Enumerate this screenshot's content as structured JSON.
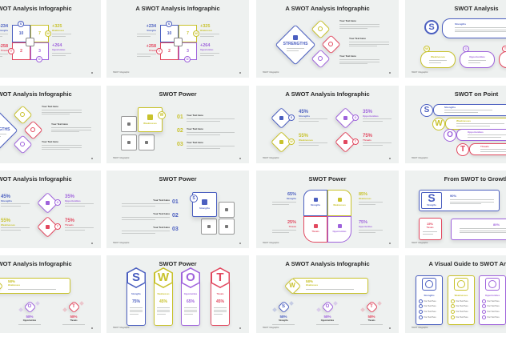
{
  "footer": "SWOT Infographic",
  "colors": {
    "S": "#4b5fc0",
    "W": "#c8c22c",
    "O": "#9f63dc",
    "T": "#e2485f",
    "slide_bg": "#eef1f0",
    "title": "#2a2a2a"
  },
  "slides": [
    {
      "title": "A SWOT Analysis Infographic",
      "stats": [
        {
          "value": "+234",
          "label": "Strengths"
        },
        {
          "value": "+258",
          "label": "Threats"
        },
        {
          "value": "+325",
          "label": "Weaknesses"
        },
        {
          "value": "+264",
          "label": "Opportunities"
        }
      ],
      "cells": [
        "10",
        "7",
        "2",
        "3"
      ],
      "letters": [
        "S",
        "W",
        "T",
        "O"
      ]
    },
    {
      "title": "A SWOT Analysis Infographic",
      "stats": [
        {
          "value": "+234",
          "label": "Strengths"
        },
        {
          "value": "+258",
          "label": "Threats"
        },
        {
          "value": "+325",
          "label": "Weaknesses"
        },
        {
          "value": "+264",
          "label": "Opportunities"
        }
      ],
      "cells": [
        "10",
        "7",
        "2",
        "3"
      ],
      "letters": [
        "S",
        "W",
        "T",
        "O"
      ]
    },
    {
      "title": "A SWOT Analysis Infographic",
      "main": "STRENGTHS",
      "items": [
        "Your Text Here",
        "Your Text Here",
        "Your Text Here"
      ]
    },
    {
      "title": "SWOT Analysis",
      "letter": "S",
      "main": "Strengths",
      "pills": [
        {
          "letter": "W",
          "label": "Weaknesses"
        },
        {
          "letter": "O",
          "label": "Opportunities"
        },
        {
          "letter": "T",
          "label": "Threats"
        }
      ]
    },
    {
      "title": "A SWOT Analysis Infographic",
      "main": "STRENGTHS",
      "items": [
        "Your Text Here",
        "Your Text Here",
        "Your Text Here"
      ]
    },
    {
      "title": "SWOT Power",
      "badge": "W",
      "highlight": "Weaknesses",
      "items": [
        {
          "num": "01",
          "label": "Your Text Here"
        },
        {
          "num": "02",
          "label": "Your Text Here"
        },
        {
          "num": "03",
          "label": "Your Text Here"
        }
      ]
    },
    {
      "title": "A SWOT Analysis Infographic",
      "quads": [
        {
          "letter": "S",
          "value": "45%",
          "label": "Strengths"
        },
        {
          "letter": "O",
          "value": "35%",
          "label": "Opportunities"
        },
        {
          "letter": "W",
          "value": "55%",
          "label": "Weaknesses"
        },
        {
          "letter": "T",
          "value": "75%",
          "label": "Threats"
        }
      ]
    },
    {
      "title": "SWOT on Point",
      "rows": [
        {
          "letter": "S",
          "label": "Strengths"
        },
        {
          "letter": "W",
          "label": "Weaknesses"
        },
        {
          "letter": "O",
          "label": "Opportunities"
        },
        {
          "letter": "T",
          "label": "Threats"
        }
      ]
    },
    {
      "title": "A SWOT Analysis Infographic",
      "quads": [
        {
          "letter": "S",
          "value": "45%",
          "label": "Strengths"
        },
        {
          "letter": "O",
          "value": "35%",
          "label": "Opportunities"
        },
        {
          "letter": "W",
          "value": "55%",
          "label": "Weaknesses"
        },
        {
          "letter": "T",
          "value": "75%",
          "label": "Threats"
        }
      ]
    },
    {
      "title": "SWOT Power",
      "badge": "S",
      "highlight": "Strengths",
      "items": [
        {
          "num": "01",
          "label": "Your Text Here"
        },
        {
          "num": "02",
          "label": "Your Text Here"
        },
        {
          "num": "03",
          "label": "Your Text Here"
        }
      ]
    },
    {
      "title": "SWOT Power",
      "quads": [
        {
          "letter": "S",
          "value": "65%",
          "label": "Strengths"
        },
        {
          "letter": "W",
          "value": "85%",
          "label": "Weaknesses"
        },
        {
          "letter": "T",
          "value": "25%",
          "label": "Threats"
        },
        {
          "letter": "O",
          "value": "75%",
          "label": "Opportunities"
        }
      ]
    },
    {
      "title": "From SWOT to Growth",
      "letter": "S",
      "cards": [
        {
          "value": "90%",
          "label": "Strengths"
        },
        {
          "value": "15%",
          "label": "Threats"
        },
        {
          "value": "80%"
        }
      ]
    },
    {
      "title": "A SWOT Analysis Infographic",
      "top": {
        "letter": "W",
        "value": "58%",
        "label": "Weaknesses"
      },
      "bottom": [
        {
          "letter": "S",
          "value": "58%",
          "label": "Strengths"
        },
        {
          "letter": "O",
          "value": "58%",
          "label": "Opportunities"
        },
        {
          "letter": "T",
          "value": "58%",
          "label": "Threats"
        }
      ]
    },
    {
      "title": "SWOT Power",
      "columns": [
        {
          "letter": "S",
          "label": "Strengths",
          "value": "75%"
        },
        {
          "letter": "W",
          "label": "Weaknesses",
          "value": "45%"
        },
        {
          "letter": "O",
          "label": "Opportunities",
          "value": "65%"
        },
        {
          "letter": "T",
          "label": "Threats",
          "value": "45%"
        }
      ]
    },
    {
      "title": "A SWOT Analysis Infographic",
      "top": {
        "letter": "W",
        "value": "58%",
        "label": "Weaknesses"
      },
      "bottom": [
        {
          "letter": "S",
          "value": "58%",
          "label": "Strengths"
        },
        {
          "letter": "O",
          "value": "58%",
          "label": "Opportunities"
        },
        {
          "letter": "T",
          "value": "58%",
          "label": "Threats"
        }
      ]
    },
    {
      "title": "A Visual Guide to SWOT Analysis",
      "cards": [
        {
          "letter": "S",
          "label": "Strengths",
          "items": [
            "Your Text Here",
            "Your Text Here",
            "Your Text Here",
            "Your Text Here"
          ]
        },
        {
          "letter": "W",
          "label": "Weaknesses",
          "items": [
            "Your Text Here",
            "Your Text Here",
            "Your Text Here",
            "Your Text Here"
          ]
        },
        {
          "letter": "O",
          "label": "Opportunities",
          "items": [
            "Your Text Here",
            "Your Text Here",
            "Your Text Here",
            "Your Text Here"
          ]
        }
      ]
    }
  ]
}
